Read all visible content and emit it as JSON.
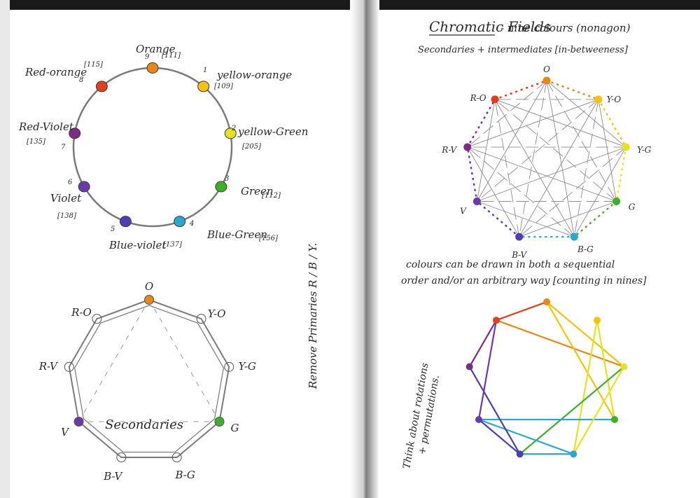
{
  "colors": {
    "orange": "#e8861a",
    "yellow_orange": "#f4c20f",
    "yellow_green": "#e6e21f",
    "green": "#3fae2a",
    "blue_green": "#2aa6cf",
    "blue_violet": "#4a3fb5",
    "violet": "#6a3aa8",
    "red_violet": "#7b2d86",
    "red_orange": "#e0401e"
  },
  "left_page": {
    "wheel": {
      "nodes": [
        {
          "num": "9",
          "name": "Orange",
          "code": "[111]",
          "color": "orange"
        },
        {
          "num": "1",
          "name": "yellow-orange",
          "code": "[109]",
          "color": "yellow_orange"
        },
        {
          "num": "2",
          "name": "yellow-Green",
          "code": "[205]",
          "color": "yellow_green"
        },
        {
          "num": "3",
          "name": "Green",
          "code": "[112]",
          "color": "green"
        },
        {
          "num": "4",
          "name": "Blue-Green",
          "code": "[156]",
          "color": "blue_green"
        },
        {
          "num": "5",
          "name": "Blue-violet",
          "code": "[137]",
          "color": "blue_violet"
        },
        {
          "num": "6",
          "name": "Violet",
          "code": "[138]",
          "color": "violet"
        },
        {
          "num": "7",
          "name": "Red-Violet",
          "code": "[135]",
          "color": "red_violet"
        },
        {
          "num": "8",
          "name": "Red-orange",
          "code": "[115]",
          "color": "red_orange"
        }
      ]
    },
    "nonagon": {
      "labels": [
        "O",
        "Y-O",
        "Y-G",
        "G",
        "B-G",
        "B-V",
        "V",
        "R-V",
        "R-O"
      ],
      "secondaries_label": "Secondaries"
    },
    "side_note": "Remove Primaries R / B / Y."
  },
  "right_page": {
    "title": "Chromatic Fields",
    "title_rest": "- nine colours (nonagon)",
    "subtitle": "Secondaries + intermediates [in-betweeness]",
    "field": {
      "labels": [
        "O",
        "Y-O",
        "Y-G",
        "G",
        "B-G",
        "B-V",
        "V",
        "R-V",
        "R-O"
      ]
    },
    "note_line1": "colours can be drawn in both a sequential",
    "note_line2": "order and/or an arbitrary way [counting in nines]",
    "side_note_line1": "Think about rotations",
    "side_note_line2": "+ permutations."
  }
}
